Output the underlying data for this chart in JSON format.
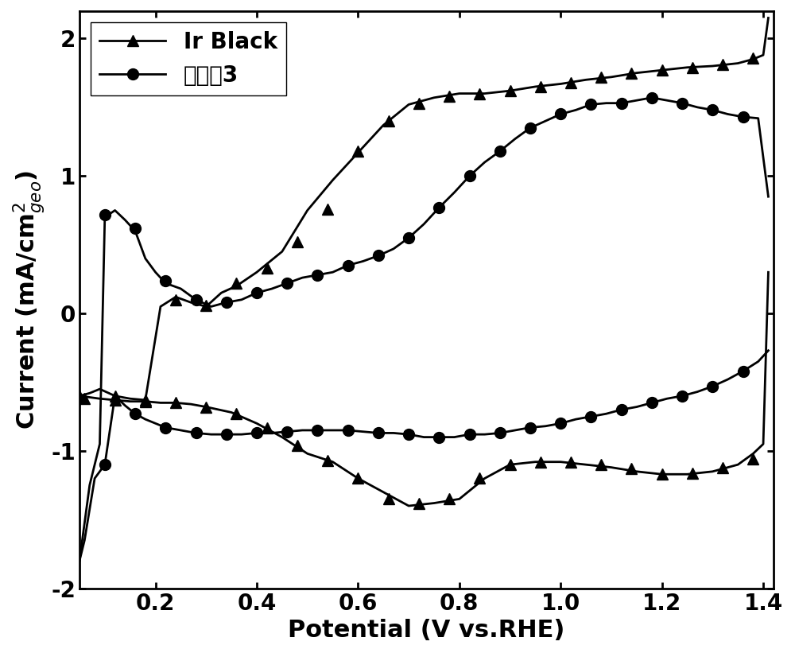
{
  "title": "",
  "xlabel": "Potential (V vs.RHE)",
  "ylabel": "Current (mA/cm²geo)",
  "xlim": [
    0.05,
    1.42
  ],
  "ylim": [
    -2.0,
    2.2
  ],
  "yticks": [
    -2,
    -1,
    0,
    1,
    2
  ],
  "xticks": [
    0.2,
    0.4,
    0.6,
    0.8,
    1.0,
    1.2,
    1.4
  ],
  "background_color": "#ffffff",
  "line_color": "#000000",
  "ir_black_upper_x": [
    0.05,
    0.07,
    0.09,
    0.12,
    0.15,
    0.18,
    0.21,
    0.24,
    0.27,
    0.3,
    0.33,
    0.36,
    0.4,
    0.45,
    0.5,
    0.55,
    0.6,
    0.65,
    0.7,
    0.75,
    0.8,
    0.85,
    0.9,
    0.95,
    1.0,
    1.05,
    1.1,
    1.15,
    1.2,
    1.25,
    1.3,
    1.35,
    1.38,
    1.4,
    1.41
  ],
  "ir_black_upper_y": [
    -0.6,
    -0.58,
    -0.55,
    -0.6,
    -0.62,
    -0.63,
    0.05,
    0.12,
    0.08,
    0.05,
    0.15,
    0.2,
    0.3,
    0.45,
    0.75,
    0.97,
    1.17,
    1.37,
    1.52,
    1.57,
    1.6,
    1.6,
    1.62,
    1.65,
    1.67,
    1.7,
    1.72,
    1.75,
    1.77,
    1.79,
    1.8,
    1.82,
    1.85,
    1.88,
    2.15
  ],
  "ir_black_lower_x": [
    1.41,
    1.4,
    1.38,
    1.35,
    1.3,
    1.25,
    1.2,
    1.15,
    1.1,
    1.05,
    1.0,
    0.95,
    0.9,
    0.85,
    0.8,
    0.75,
    0.7,
    0.65,
    0.6,
    0.55,
    0.5,
    0.45,
    0.4,
    0.35,
    0.3,
    0.27,
    0.24,
    0.21,
    0.18,
    0.15,
    0.12,
    0.09,
    0.07,
    0.05
  ],
  "ir_black_lower_y": [
    0.3,
    -0.95,
    -1.02,
    -1.1,
    -1.15,
    -1.17,
    -1.17,
    -1.15,
    -1.12,
    -1.1,
    -1.08,
    -1.08,
    -1.1,
    -1.2,
    -1.35,
    -1.38,
    -1.4,
    -1.3,
    -1.2,
    -1.08,
    -1.02,
    -0.9,
    -0.8,
    -0.72,
    -0.68,
    -0.66,
    -0.65,
    -0.65,
    -0.64,
    -0.64,
    -0.63,
    -0.62,
    -0.61,
    -0.6
  ],
  "ir_black_marker_upper_x": [
    0.05,
    0.12,
    0.18,
    0.24,
    0.3,
    0.36,
    0.42,
    0.48,
    0.54,
    0.6,
    0.66,
    0.72,
    0.78,
    0.84,
    0.9,
    0.96,
    1.02,
    1.08,
    1.14,
    1.2,
    1.26,
    1.32,
    1.38
  ],
  "ir_black_marker_upper_y": [
    -0.6,
    -0.6,
    -0.63,
    0.1,
    0.06,
    0.22,
    0.33,
    0.52,
    0.76,
    1.18,
    1.4,
    1.53,
    1.58,
    1.6,
    1.62,
    1.65,
    1.68,
    1.72,
    1.75,
    1.77,
    1.79,
    1.81,
    1.86
  ],
  "ir_black_marker_lower_x": [
    1.38,
    1.32,
    1.26,
    1.2,
    1.14,
    1.08,
    1.02,
    0.96,
    0.9,
    0.84,
    0.78,
    0.72,
    0.66,
    0.6,
    0.54,
    0.48,
    0.42,
    0.36,
    0.3,
    0.24,
    0.18,
    0.12,
    0.06
  ],
  "ir_black_marker_lower_y": [
    -1.06,
    -1.12,
    -1.16,
    -1.17,
    -1.13,
    -1.1,
    -1.08,
    -1.08,
    -1.1,
    -1.2,
    -1.35,
    -1.38,
    -1.35,
    -1.2,
    -1.07,
    -0.96,
    -0.83,
    -0.73,
    -0.68,
    -0.65,
    -0.64,
    -0.63,
    -0.62
  ],
  "ex3_upper_x": [
    0.05,
    0.07,
    0.09,
    0.1,
    0.12,
    0.14,
    0.16,
    0.18,
    0.2,
    0.22,
    0.25,
    0.28,
    0.31,
    0.34,
    0.37,
    0.4,
    0.43,
    0.46,
    0.49,
    0.52,
    0.55,
    0.58,
    0.61,
    0.64,
    0.67,
    0.7,
    0.73,
    0.76,
    0.79,
    0.82,
    0.85,
    0.88,
    0.91,
    0.94,
    0.97,
    1.0,
    1.03,
    1.06,
    1.09,
    1.12,
    1.15,
    1.18,
    1.21,
    1.24,
    1.27,
    1.3,
    1.33,
    1.36,
    1.39,
    1.41
  ],
  "ex3_upper_y": [
    -1.8,
    -1.25,
    -0.95,
    0.7,
    0.75,
    0.68,
    0.6,
    0.4,
    0.3,
    0.22,
    0.18,
    0.1,
    0.05,
    0.08,
    0.1,
    0.15,
    0.18,
    0.22,
    0.26,
    0.28,
    0.3,
    0.35,
    0.38,
    0.42,
    0.47,
    0.55,
    0.65,
    0.77,
    0.88,
    1.0,
    1.1,
    1.18,
    1.27,
    1.35,
    1.4,
    1.45,
    1.48,
    1.52,
    1.53,
    1.53,
    1.55,
    1.57,
    1.55,
    1.53,
    1.5,
    1.48,
    1.45,
    1.43,
    1.42,
    0.85
  ],
  "ex3_lower_x": [
    1.41,
    1.39,
    1.36,
    1.33,
    1.3,
    1.27,
    1.24,
    1.21,
    1.18,
    1.15,
    1.12,
    1.09,
    1.06,
    1.03,
    1.0,
    0.97,
    0.94,
    0.91,
    0.88,
    0.85,
    0.82,
    0.79,
    0.76,
    0.73,
    0.7,
    0.67,
    0.64,
    0.61,
    0.58,
    0.55,
    0.52,
    0.49,
    0.46,
    0.43,
    0.4,
    0.37,
    0.34,
    0.31,
    0.28,
    0.25,
    0.22,
    0.2,
    0.18,
    0.16,
    0.14,
    0.12,
    0.1,
    0.08,
    0.06,
    0.05
  ],
  "ex3_lower_y": [
    -0.27,
    -0.35,
    -0.42,
    -0.48,
    -0.53,
    -0.57,
    -0.6,
    -0.62,
    -0.65,
    -0.68,
    -0.7,
    -0.73,
    -0.75,
    -0.77,
    -0.8,
    -0.82,
    -0.83,
    -0.85,
    -0.87,
    -0.88,
    -0.88,
    -0.9,
    -0.9,
    -0.9,
    -0.88,
    -0.87,
    -0.87,
    -0.86,
    -0.85,
    -0.85,
    -0.85,
    -0.85,
    -0.86,
    -0.87,
    -0.87,
    -0.88,
    -0.88,
    -0.88,
    -0.87,
    -0.85,
    -0.83,
    -0.8,
    -0.77,
    -0.73,
    -0.67,
    -0.6,
    -1.1,
    -1.2,
    -1.65,
    -1.8
  ],
  "ex3_marker_upper_x": [
    0.1,
    0.16,
    0.22,
    0.28,
    0.34,
    0.4,
    0.46,
    0.52,
    0.58,
    0.64,
    0.7,
    0.76,
    0.82,
    0.88,
    0.94,
    1.0,
    1.06,
    1.12,
    1.18,
    1.24,
    1.3,
    1.36
  ],
  "ex3_marker_upper_y": [
    0.72,
    0.62,
    0.24,
    0.1,
    0.08,
    0.15,
    0.22,
    0.28,
    0.35,
    0.42,
    0.55,
    0.77,
    1.0,
    1.18,
    1.35,
    1.45,
    1.52,
    1.53,
    1.57,
    1.53,
    1.48,
    1.43
  ],
  "ex3_marker_lower_x": [
    1.36,
    1.3,
    1.24,
    1.18,
    1.12,
    1.06,
    1.0,
    0.94,
    0.88,
    0.82,
    0.76,
    0.7,
    0.64,
    0.58,
    0.52,
    0.46,
    0.4,
    0.34,
    0.28,
    0.22,
    0.16,
    0.1
  ],
  "ex3_marker_lower_y": [
    -0.42,
    -0.53,
    -0.6,
    -0.65,
    -0.7,
    -0.75,
    -0.8,
    -0.83,
    -0.87,
    -0.88,
    -0.9,
    -0.88,
    -0.87,
    -0.85,
    -0.85,
    -0.86,
    -0.87,
    -0.88,
    -0.87,
    -0.83,
    -0.73,
    -1.1
  ],
  "legend_ir_label": "Ir Black",
  "legend_ex3_label": "实施例3",
  "font_size_label": 22,
  "font_size_tick": 20,
  "font_size_legend": 20,
  "marker_size_triangle": 10,
  "marker_size_circle": 10,
  "line_width": 2.0
}
